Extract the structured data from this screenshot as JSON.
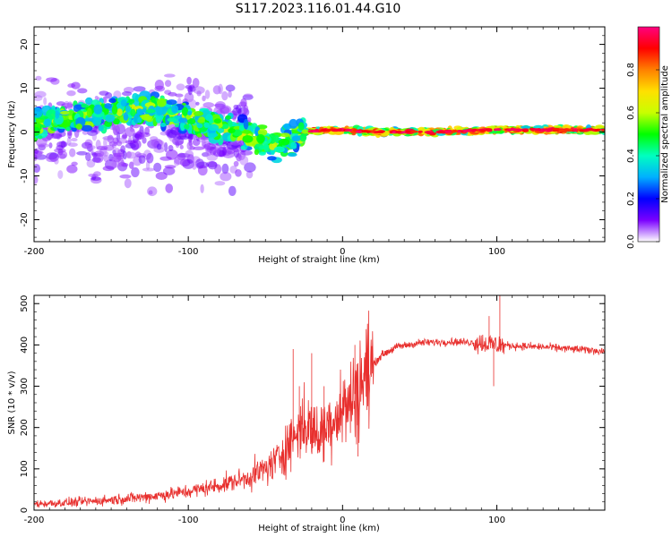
{
  "figure": {
    "title": "S117.2023.116.01.44.G10"
  },
  "chart_data": [
    {
      "type": "heatmap",
      "title": "",
      "xlabel": "Height of straight line (km)",
      "ylabel": "Frequency (Hz)",
      "xlim": [
        -200,
        170
      ],
      "ylim": [
        -25,
        24
      ],
      "xticks": [
        -200,
        -100,
        0,
        100
      ],
      "yticks": [
        -20,
        -10,
        0,
        10,
        20
      ],
      "grid": false,
      "ridge": [
        {
          "x": -200,
          "f": 2
        },
        {
          "x": -180,
          "f": 3
        },
        {
          "x": -160,
          "f": 4
        },
        {
          "x": -140,
          "f": 5
        },
        {
          "x": -120,
          "f": 5
        },
        {
          "x": -100,
          "f": 3
        },
        {
          "x": -80,
          "f": 1
        },
        {
          "x": -60,
          "f": -1
        },
        {
          "x": -45,
          "f": -3
        },
        {
          "x": -35,
          "f": -2
        },
        {
          "x": -25,
          "f": 0
        },
        {
          "x": -10,
          "f": 0.5
        },
        {
          "x": 0,
          "f": 0.5
        },
        {
          "x": 20,
          "f": 0
        },
        {
          "x": 60,
          "f": 0
        },
        {
          "x": 100,
          "f": 0.5
        },
        {
          "x": 170,
          "f": 0.5
        }
      ],
      "colorbar": {
        "label": "Normalized spectral amplitude",
        "range": [
          0,
          1
        ],
        "ticks": [
          "0.0",
          "0.2",
          "0.4",
          "0.6",
          "0.8"
        ],
        "tick_values": [
          0.0,
          0.2,
          0.4,
          0.6,
          0.8
        ],
        "colors": [
          "#ffffff",
          "#7a00ff",
          "#0000ff",
          "#00b0ff",
          "#00ffc0",
          "#00ff00",
          "#c8ff00",
          "#ffe000",
          "#ff8000",
          "#ff0000",
          "#ff0080"
        ]
      }
    },
    {
      "type": "line",
      "title": "",
      "xlabel": "Height of straight line (km)",
      "ylabel": "SNR (10 * v/v)",
      "xlim": [
        -200,
        170
      ],
      "ylim": [
        0,
        520
      ],
      "xticks": [
        -200,
        -100,
        0,
        100
      ],
      "yticks": [
        0,
        100,
        200,
        300,
        400,
        500
      ],
      "grid": false,
      "series": [
        {
          "color": "#e8302e",
          "trend": [
            {
              "x": -200,
              "y": 15
            },
            {
              "x": -180,
              "y": 18
            },
            {
              "x": -160,
              "y": 22
            },
            {
              "x": -140,
              "y": 28
            },
            {
              "x": -120,
              "y": 35
            },
            {
              "x": -100,
              "y": 45
            },
            {
              "x": -80,
              "y": 60
            },
            {
              "x": -60,
              "y": 80
            },
            {
              "x": -45,
              "y": 110
            },
            {
              "x": -35,
              "y": 160
            },
            {
              "x": -25,
              "y": 210
            },
            {
              "x": -15,
              "y": 180
            },
            {
              "x": -5,
              "y": 230
            },
            {
              "x": 5,
              "y": 260
            },
            {
              "x": 15,
              "y": 330
            },
            {
              "x": 25,
              "y": 375
            },
            {
              "x": 35,
              "y": 395
            },
            {
              "x": 50,
              "y": 405
            },
            {
              "x": 70,
              "y": 408
            },
            {
              "x": 90,
              "y": 405
            },
            {
              "x": 100,
              "y": 400
            },
            {
              "x": 110,
              "y": 398
            },
            {
              "x": 130,
              "y": 395
            },
            {
              "x": 150,
              "y": 390
            },
            {
              "x": 170,
              "y": 385
            }
          ],
          "spikes": [
            {
              "x": -32,
              "y": 390
            },
            {
              "x": -28,
              "y": 300
            },
            {
              "x": -20,
              "y": 380
            },
            {
              "x": -12,
              "y": 300
            },
            {
              "x": 8,
              "y": 400
            },
            {
              "x": 10,
              "y": 130
            },
            {
              "x": 95,
              "y": 470
            },
            {
              "x": 98,
              "y": 300
            },
            {
              "x": 102,
              "y": 520
            }
          ]
        }
      ]
    }
  ]
}
